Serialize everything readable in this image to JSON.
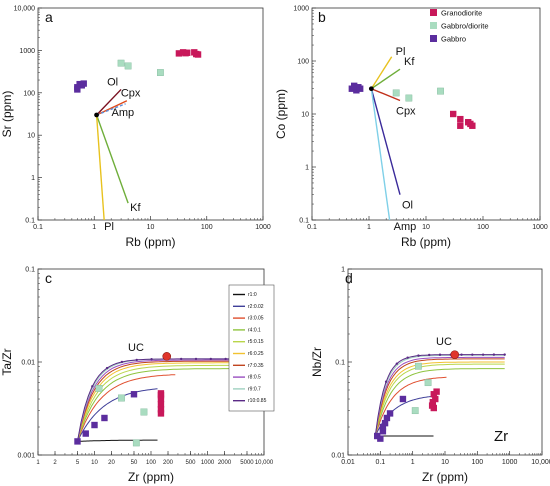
{
  "colors": {
    "granodiorite": "#c8185a",
    "gabbro_diorite": "#a9dcc0",
    "gabbro": "#5b2d9e",
    "uc": "#e0352b",
    "curves": [
      "#111111",
      "#3f3f99",
      "#e05030",
      "#8fc43f",
      "#b9d64a",
      "#f2c230",
      "#c0451f",
      "#9a4fc0",
      "#9fd0c0",
      "#5a2a86"
    ]
  },
  "legend_main": [
    "Granodiorite",
    "Gabbro/diorite",
    "Gabbro"
  ],
  "legend_curves": [
    "r1:0",
    "r2:0.02",
    "r3:0.05",
    "r4:0.1",
    "r5:0.15",
    "r6:0.25",
    "r7:0.35",
    "r8:0.5",
    "r9:0.7",
    "r10:0.85"
  ],
  "chart_data": [
    {
      "panel": "a",
      "type": "scatter",
      "xlabel": "Rb (ppm)",
      "ylabel": "Sr (ppm)",
      "xscale": "log",
      "yscale": "log",
      "xlim": [
        0.1,
        1000
      ],
      "ylim": [
        0.1,
        10000
      ],
      "xticks": [
        "0.1",
        "1",
        "10",
        "100",
        "1000"
      ],
      "yticks": [
        "0.1",
        "1",
        "10",
        "100",
        "1000",
        "10,000"
      ],
      "series": [
        {
          "name": "Granodiorite",
          "points": [
            [
              32,
              850
            ],
            [
              38,
              900
            ],
            [
              45,
              880
            ],
            [
              60,
              900
            ],
            [
              70,
              800
            ],
            [
              65,
              820
            ],
            [
              42,
              860
            ]
          ]
        },
        {
          "name": "Gabbro/diorite",
          "points": [
            [
              3,
              500
            ],
            [
              4,
              430
            ],
            [
              15,
              300
            ]
          ]
        },
        {
          "name": "Gabbro",
          "points": [
            [
              0.5,
              135
            ],
            [
              0.55,
              160
            ],
            [
              0.6,
              150
            ],
            [
              0.65,
              165
            ],
            [
              0.5,
              120
            ]
          ]
        }
      ],
      "origin": [
        1.1,
        30
      ],
      "vectors": [
        {
          "label": "Ol",
          "end": [
            3.0,
            120
          ]
        },
        {
          "label": "Cpx",
          "end": [
            3.8,
            65
          ]
        },
        {
          "label": "Amp",
          "end": [
            3.6,
            55
          ]
        },
        {
          "label": "Kf",
          "end": [
            4.0,
            0.25
          ]
        },
        {
          "label": "Pl",
          "end": [
            1.5,
            0.1
          ]
        }
      ]
    },
    {
      "panel": "b",
      "type": "scatter",
      "xlabel": "Rb (ppm)",
      "ylabel": "Co (ppm)",
      "xscale": "log",
      "yscale": "log",
      "xlim": [
        0.1,
        1000
      ],
      "ylim": [
        0.1,
        1000
      ],
      "xticks": [
        "0.1",
        "1",
        "10",
        "100",
        "1000"
      ],
      "yticks": [
        "0.1",
        "1",
        "10",
        "100",
        "1000"
      ],
      "series": [
        {
          "name": "Granodiorite",
          "points": [
            [
              30,
              10
            ],
            [
              40,
              8
            ],
            [
              40,
              6
            ],
            [
              55,
              7
            ],
            [
              65,
              6
            ],
            [
              60,
              6.5
            ]
          ]
        },
        {
          "name": "Gabbro/diorite",
          "points": [
            [
              3,
              25
            ],
            [
              5,
              20
            ],
            [
              18,
              27
            ]
          ]
        },
        {
          "name": "Gabbro",
          "points": [
            [
              0.5,
              30
            ],
            [
              0.6,
              28
            ],
            [
              0.65,
              32
            ],
            [
              0.55,
              34
            ],
            [
              0.7,
              30
            ]
          ]
        }
      ],
      "origin": [
        1.1,
        30
      ],
      "vectors": [
        {
          "label": "Pl",
          "end": [
            2.5,
            120
          ]
        },
        {
          "label": "Kf",
          "end": [
            3.5,
            70
          ]
        },
        {
          "label": "Cpx",
          "end": [
            3.5,
            18
          ]
        },
        {
          "label": "Ol",
          "end": [
            3.5,
            0.3
          ]
        },
        {
          "label": "Amp",
          "end": [
            2.3,
            0.1
          ]
        }
      ]
    },
    {
      "panel": "c",
      "type": "line",
      "xlabel": "Zr (ppm)",
      "ylabel": "Ta/Zr",
      "xscale": "log",
      "yscale": "log",
      "xlim": [
        1,
        10000
      ],
      "ylim": [
        0.001,
        0.1
      ],
      "xticks": [
        "1",
        "2",
        "5",
        "10",
        "20",
        "50",
        "100",
        "200",
        "500",
        "1000",
        "2000",
        "5000",
        "10,000"
      ],
      "yticks": [
        "0.001",
        "0.01",
        "0.1"
      ],
      "annotation": "UC",
      "uc_point": [
        190,
        0.0115
      ],
      "start": [
        5,
        0.0014
      ],
      "end": [
        7000,
        0.0108
      ],
      "curve_plateaus": [
        0.00145,
        0.0055,
        0.0075,
        0.0085,
        0.0092,
        0.0098,
        0.0102,
        0.0105,
        0.0108,
        0.0108
      ],
      "series": [
        {
          "name": "Granodiorite",
          "points": [
            [
              150,
              0.0044
            ],
            [
              150,
              0.004
            ],
            [
              150,
              0.0035
            ],
            [
              150,
              0.0031
            ],
            [
              150,
              0.0028
            ],
            [
              150,
              0.0046
            ]
          ]
        },
        {
          "name": "Gabbro/diorite",
          "points": [
            [
              12,
              0.0052
            ],
            [
              30,
              0.0041
            ],
            [
              75,
              0.0029
            ],
            [
              55,
              0.00135
            ]
          ]
        },
        {
          "name": "Gabbro",
          "points": [
            [
              5,
              0.0014
            ],
            [
              7,
              0.0017
            ],
            [
              10,
              0.0021
            ],
            [
              15,
              0.0025
            ],
            [
              50,
              0.0045
            ]
          ]
        }
      ]
    },
    {
      "panel": "d",
      "type": "line",
      "xlabel": "Zr (ppm)",
      "ylabel": "Nb/Zr",
      "xscale": "log",
      "yscale": "log",
      "xlim": [
        0.01,
        10000
      ],
      "ylim": [
        0.01,
        1
      ],
      "xticks": [
        "0.01",
        "0.1",
        "1",
        "10",
        "100",
        "1000",
        "10,000"
      ],
      "yticks": [
        "0.01",
        "0.1",
        "1"
      ],
      "annotation": "UC",
      "corner_label": "Zr",
      "uc_point": [
        20,
        0.12
      ],
      "start": [
        0.07,
        0.016
      ],
      "end": [
        700,
        0.12
      ],
      "curve_plateaus": [
        0.016,
        0.045,
        0.07,
        0.085,
        0.095,
        0.1,
        0.108,
        0.112,
        0.118,
        0.12
      ],
      "series": [
        {
          "name": "Granodiorite",
          "points": [
            [
              4.5,
              0.045
            ],
            [
              5,
              0.04
            ],
            [
              4.2,
              0.037
            ],
            [
              4,
              0.034
            ],
            [
              4.5,
              0.032
            ],
            [
              5.5,
              0.048
            ]
          ]
        },
        {
          "name": "Gabbro/diorite",
          "points": [
            [
              1.5,
              0.09
            ],
            [
              3,
              0.06
            ],
            [
              1.2,
              0.03
            ]
          ]
        },
        {
          "name": "Gabbro",
          "points": [
            [
              0.08,
              0.016
            ],
            [
              0.12,
              0.018
            ],
            [
              0.12,
              0.02
            ],
            [
              0.14,
              0.022
            ],
            [
              0.16,
              0.025
            ],
            [
              0.2,
              0.028
            ],
            [
              0.5,
              0.04
            ],
            [
              0.1,
              0.015
            ]
          ]
        }
      ]
    }
  ]
}
